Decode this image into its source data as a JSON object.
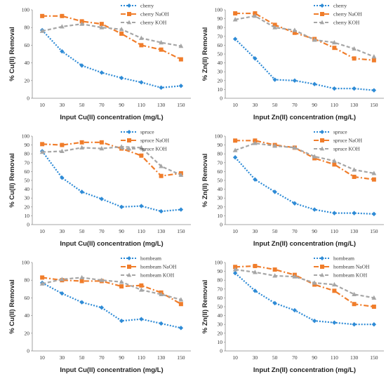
{
  "chart_data": [
    {
      "type": "line",
      "xlabel": "Input Cu(II) concentration (mg/L)",
      "ylabel": "% Cu(II) Removal",
      "x": [
        10,
        30,
        50,
        70,
        90,
        110,
        130,
        150
      ],
      "ylim": [
        0,
        100
      ],
      "yticks": [
        0,
        20,
        40,
        60,
        80,
        100
      ],
      "legend_position": "top-right",
      "series": [
        {
          "name": "cherry",
          "color": "#2e8bd6",
          "values": [
            77,
            53,
            37,
            29,
            23,
            18,
            12,
            14
          ]
        },
        {
          "name": "cherry NaOH",
          "color": "#f07d2b",
          "values": [
            93,
            93,
            87,
            84,
            73,
            60,
            55,
            44
          ]
        },
        {
          "name": "cherry KOH",
          "color": "#a6a6a6",
          "values": [
            76,
            81,
            84,
            80,
            78,
            68,
            63,
            59
          ]
        }
      ]
    },
    {
      "type": "line",
      "xlabel": "Input Zn(II) concentration (mg/L)",
      "ylabel": "% Zn(II) Removal",
      "x": [
        10,
        30,
        50,
        70,
        90,
        110,
        130,
        150
      ],
      "ylim": [
        0,
        100
      ],
      "yticks": [
        0,
        10,
        20,
        30,
        40,
        50,
        60,
        70,
        80,
        90,
        100
      ],
      "legend_position": "top-right",
      "series": [
        {
          "name": "cherry",
          "color": "#2e8bd6",
          "values": [
            67,
            45,
            21,
            20,
            16,
            11,
            11,
            9
          ]
        },
        {
          "name": "cherry NaOH",
          "color": "#f07d2b",
          "values": [
            96,
            96,
            83,
            74,
            67,
            57,
            45,
            43
          ]
        },
        {
          "name": "cherry KOH",
          "color": "#a6a6a6",
          "values": [
            89,
            93,
            80,
            77,
            66,
            63,
            56,
            47
          ]
        }
      ]
    },
    {
      "type": "line",
      "xlabel": "Input Cu(II) concentration (mg/L)",
      "ylabel": "% Cu(II) Removal",
      "x": [
        10,
        30,
        50,
        70,
        90,
        110,
        130,
        150
      ],
      "ylim": [
        0,
        100
      ],
      "yticks": [
        0,
        10,
        20,
        30,
        40,
        50,
        60,
        70,
        80,
        90,
        100
      ],
      "legend_position": "top-right",
      "series": [
        {
          "name": "spruce",
          "color": "#2e8bd6",
          "values": [
            83,
            53,
            37,
            29,
            20,
            21,
            15,
            17
          ]
        },
        {
          "name": "spruce NaOH",
          "color": "#f07d2b",
          "values": [
            91,
            90,
            93,
            93,
            86,
            78,
            55,
            58
          ]
        },
        {
          "name": "spruce KOH",
          "color": "#a6a6a6",
          "values": [
            82,
            83,
            87,
            86,
            88,
            87,
            66,
            56
          ]
        }
      ]
    },
    {
      "type": "line",
      "xlabel": "Input Zn(II) concentration (mg/L)",
      "ylabel": "% Zn(II) Removal",
      "x": [
        10,
        30,
        50,
        70,
        90,
        110,
        130,
        150
      ],
      "ylim": [
        0,
        100
      ],
      "yticks": [
        0,
        10,
        20,
        30,
        40,
        50,
        60,
        70,
        80,
        90,
        100
      ],
      "legend_position": "top-right",
      "series": [
        {
          "name": "spruce",
          "color": "#2e8bd6",
          "values": [
            76,
            51,
            37,
            24,
            17,
            13,
            13,
            12
          ]
        },
        {
          "name": "spruce NaOH",
          "color": "#f07d2b",
          "values": [
            95,
            95,
            90,
            87,
            75,
            68,
            54,
            51
          ]
        },
        {
          "name": "spruce KOH",
          "color": "#a6a6a6",
          "values": [
            84,
            92,
            89,
            87,
            77,
            72,
            62,
            58
          ]
        }
      ]
    },
    {
      "type": "line",
      "xlabel": "Input Cu(II) concentration (mg/L)",
      "ylabel": "% Cu(II) Removal",
      "x": [
        10,
        30,
        50,
        70,
        90,
        110,
        130,
        150
      ],
      "ylim": [
        0,
        100
      ],
      "yticks": [
        0,
        20,
        40,
        60,
        80,
        100
      ],
      "legend_position": "top-right",
      "series": [
        {
          "name": "hornbeam",
          "color": "#2e8bd6",
          "values": [
            77,
            65,
            55,
            49,
            34,
            36,
            31,
            26
          ]
        },
        {
          "name": "hornbeam NaOH",
          "color": "#f07d2b",
          "values": [
            83,
            80,
            79,
            79,
            73,
            74,
            66,
            53
          ]
        },
        {
          "name": "hornbeam KOH",
          "color": "#a6a6a6",
          "values": [
            76,
            81,
            83,
            80,
            78,
            69,
            64,
            58
          ]
        }
      ]
    },
    {
      "type": "line",
      "xlabel": "Input Zn(II) concentration (mg/L)",
      "ylabel": "% Zn(II) Removal",
      "x": [
        10,
        30,
        50,
        70,
        90,
        110,
        130,
        150
      ],
      "ylim": [
        0,
        100
      ],
      "yticks": [
        0,
        10,
        20,
        30,
        40,
        50,
        60,
        70,
        80,
        90,
        100
      ],
      "legend_position": "top-right",
      "series": [
        {
          "name": "hornbeam",
          "color": "#2e8bd6",
          "values": [
            88,
            68,
            54,
            46,
            34,
            32,
            30,
            30
          ]
        },
        {
          "name": "hornbeam NaOH",
          "color": "#f07d2b",
          "values": [
            95,
            96,
            92,
            86,
            75,
            68,
            53,
            50
          ]
        },
        {
          "name": "hornbeam KOH",
          "color": "#a6a6a6",
          "values": [
            92,
            89,
            85,
            84,
            77,
            75,
            64,
            60
          ]
        }
      ]
    }
  ]
}
